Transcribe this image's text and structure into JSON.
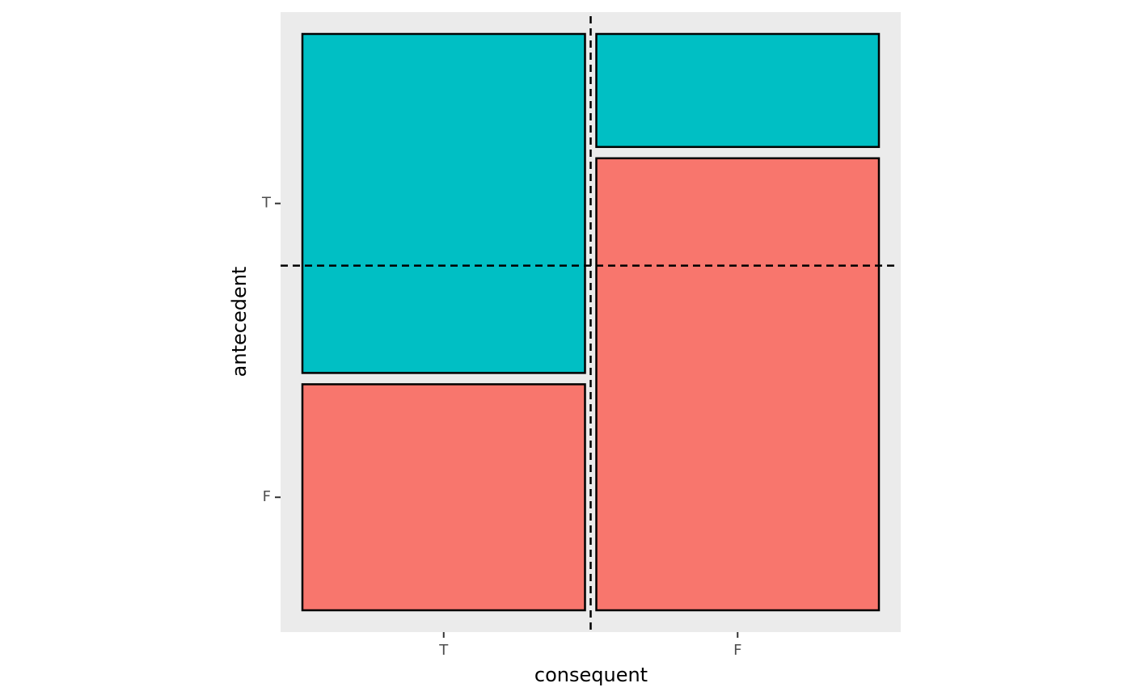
{
  "chart_data": {
    "type": "mosaic",
    "x_label": "consequent",
    "y_label": "antecedent",
    "categories": [
      "T",
      "F"
    ],
    "x_values": [
      0.5,
      0.5
    ],
    "series": [
      {
        "name": "F",
        "color": "#F8766D",
        "values": [
          0.4,
          0.8
        ]
      },
      {
        "name": "T",
        "color": "#00BFC4",
        "values": [
          0.6,
          0.2
        ]
      }
    ],
    "vline": 0.5,
    "hline": 0.6,
    "xlim": [
      0,
      1
    ],
    "ylim": [
      0,
      1
    ]
  }
}
